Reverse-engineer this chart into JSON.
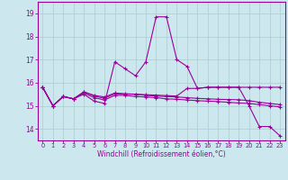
{
  "xlabel": "Windchill (Refroidissement éolien,°C)",
  "bg_color": "#cce8ee",
  "line_color": "#990099",
  "grid_color": "#aacccc",
  "xlim": [
    -0.5,
    23.5
  ],
  "ylim": [
    13.5,
    19.5
  ],
  "yticks": [
    14,
    15,
    16,
    17,
    18,
    19
  ],
  "xticks": [
    0,
    1,
    2,
    3,
    4,
    5,
    6,
    7,
    8,
    9,
    10,
    11,
    12,
    13,
    14,
    15,
    16,
    17,
    18,
    19,
    20,
    21,
    22,
    23
  ],
  "lines": [
    {
      "x": [
        0,
        1,
        2,
        3,
        4,
        5,
        6,
        7,
        8,
        9,
        10,
        11,
        12,
        13,
        14,
        15,
        16,
        17,
        18,
        19,
        20,
        21,
        22,
        23
      ],
      "y": [
        15.8,
        15.0,
        15.4,
        15.3,
        15.5,
        15.2,
        15.1,
        16.9,
        16.6,
        16.3,
        16.9,
        18.85,
        18.85,
        17.0,
        16.7,
        15.75,
        15.8,
        15.8,
        15.8,
        15.8,
        15.0,
        14.1,
        14.1,
        13.7
      ]
    },
    {
      "x": [
        0,
        1,
        2,
        3,
        4,
        5,
        6,
        7,
        8,
        9,
        10,
        11,
        12,
        13,
        14,
        15,
        16,
        17,
        18,
        19,
        20,
        21,
        22,
        23
      ],
      "y": [
        15.8,
        15.0,
        15.4,
        15.3,
        15.55,
        15.35,
        15.25,
        15.45,
        15.45,
        15.4,
        15.38,
        15.35,
        15.3,
        15.28,
        15.25,
        15.22,
        15.2,
        15.18,
        15.15,
        15.12,
        15.1,
        15.05,
        15.0,
        14.95
      ]
    },
    {
      "x": [
        0,
        1,
        2,
        3,
        4,
        5,
        6,
        7,
        8,
        9,
        10,
        11,
        12,
        13,
        14,
        15,
        16,
        17,
        18,
        19,
        20,
        21,
        22,
        23
      ],
      "y": [
        15.8,
        15.0,
        15.4,
        15.3,
        15.6,
        15.42,
        15.32,
        15.52,
        15.5,
        15.5,
        15.45,
        15.42,
        15.4,
        15.38,
        15.35,
        15.32,
        15.3,
        15.28,
        15.27,
        15.26,
        15.22,
        15.15,
        15.1,
        15.05
      ]
    },
    {
      "x": [
        0,
        1,
        2,
        3,
        4,
        5,
        6,
        7,
        8,
        9,
        10,
        11,
        12,
        13,
        14,
        15,
        16,
        17,
        18,
        19,
        20,
        21,
        22,
        23
      ],
      "y": [
        15.8,
        15.0,
        15.4,
        15.3,
        15.6,
        15.45,
        15.38,
        15.55,
        15.52,
        15.5,
        15.48,
        15.46,
        15.44,
        15.42,
        15.75,
        15.75,
        15.8,
        15.8,
        15.8,
        15.8,
        15.8,
        15.8,
        15.8,
        15.8
      ]
    }
  ]
}
